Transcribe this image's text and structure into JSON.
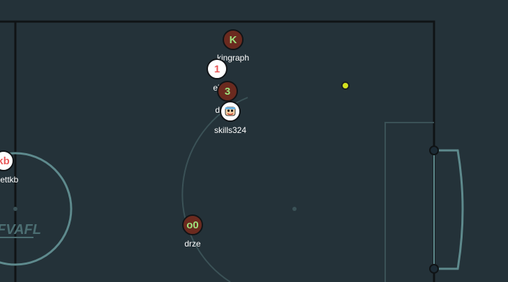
{
  "players": {
    "kingraph": {
      "avatar": "K",
      "name": "kingraph"
    },
    "ell": {
      "avatar": "1",
      "name": "el"
    },
    "da": {
      "avatar": "3",
      "name": "da"
    },
    "skills": {
      "avatar": "",
      "name": "skills324",
      "icon": "face-icon"
    },
    "drze": {
      "avatar": "o0",
      "name": "drze"
    },
    "bettkb": {
      "avatar": "kb",
      "name": "bettkb"
    }
  },
  "field": {
    "logo_text": "FVAFL"
  },
  "colors": {
    "background": "#243239",
    "line": "#5e8a8d",
    "border": "#0f1315",
    "red_team": "#6b2a1f",
    "red_avatar": "#9ee37d",
    "blue_team": "#ffffff",
    "blue_avatar": "#e85a5a",
    "ball": "#d4e21f"
  }
}
